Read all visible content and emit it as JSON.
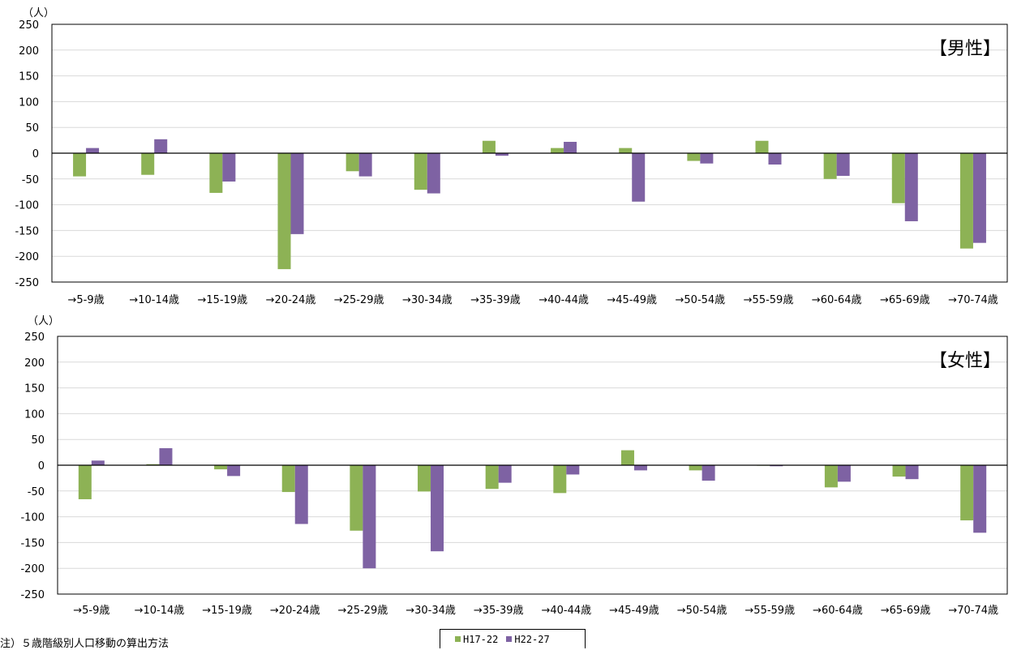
{
  "colors": {
    "h17": "#8DB255",
    "h22": "#7E62A3"
  },
  "chart_data": [
    {
      "type": "bar",
      "unit_label": "（人）",
      "panel_label": "【男性】",
      "ylim": [
        -250,
        250
      ],
      "yticks": [
        250,
        200,
        150,
        100,
        50,
        0,
        -50,
        -100,
        -150,
        -200,
        -250
      ],
      "categories": [
        "→5-9歳",
        "→10-14歳",
        "→15-19歳",
        "→20-24歳",
        "→25-29歳",
        "→30-34歳",
        "→35-39歳",
        "→40-44歳",
        "→45-49歳",
        "→50-54歳",
        "→55-59歳",
        "→60-64歳",
        "→65-69歳",
        "→70-74歳"
      ],
      "series": [
        {
          "name": "H17-22",
          "values": [
            -45,
            -42,
            -77,
            -225,
            -35,
            -71,
            24,
            10,
            10,
            -15,
            24,
            -50,
            -97,
            -185
          ]
        },
        {
          "name": "H22-27",
          "values": [
            10,
            27,
            -55,
            -157,
            -45,
            -78,
            -5,
            22,
            -94,
            -20,
            -22,
            -44,
            -132,
            -174
          ]
        }
      ],
      "grid": true,
      "legend": "bottom-center"
    },
    {
      "type": "bar",
      "unit_label": "（人）",
      "panel_label": "【女性】",
      "ylim": [
        -250,
        250
      ],
      "yticks": [
        250,
        200,
        150,
        100,
        50,
        0,
        -50,
        -100,
        -150,
        -200,
        -250
      ],
      "categories": [
        "→5-9歳",
        "→10-14歳",
        "→15-19歳",
        "→20-24歳",
        "→25-29歳",
        "→30-34歳",
        "→35-39歳",
        "→40-44歳",
        "→45-49歳",
        "→50-54歳",
        "→55-59歳",
        "→60-64歳",
        "→65-69歳",
        "→70-74歳"
      ],
      "series": [
        {
          "name": "H17-22",
          "values": [
            -66,
            2,
            -8,
            -52,
            -127,
            -51,
            -46,
            -54,
            29,
            -10,
            -1,
            -43,
            -22,
            -107
          ]
        },
        {
          "name": "H22-27",
          "values": [
            9,
            33,
            -21,
            -114,
            -200,
            -167,
            -34,
            -18,
            -10,
            -30,
            -2,
            -32,
            -27,
            -131
          ]
        }
      ],
      "grid": true,
      "legend": "bottom-center"
    }
  ],
  "legend": {
    "items": [
      {
        "label": "H17-22"
      },
      {
        "label": "H22-27"
      }
    ]
  },
  "note": "注）５歳階級別人口移動の算出方法"
}
